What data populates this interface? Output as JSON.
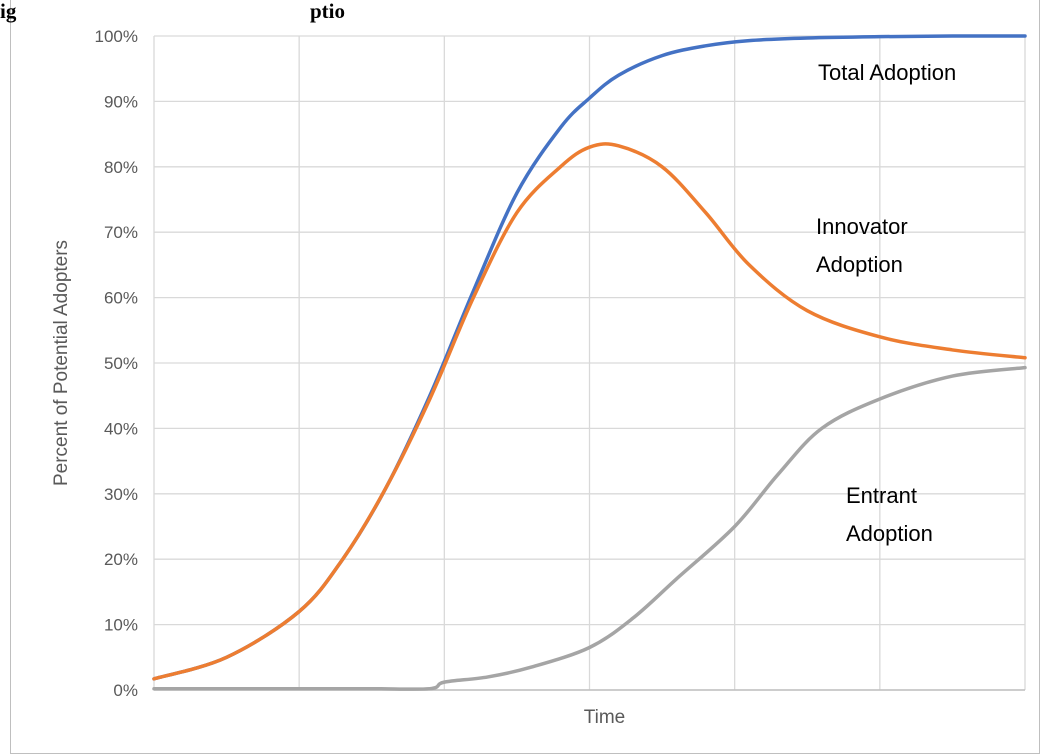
{
  "figure_heading": "ig",
  "heading_fragment": "ptio",
  "chart_data": {
    "type": "line",
    "title": "",
    "xlabel": "Time",
    "ylabel": "Percent of Potential Adopters",
    "ylim": [
      0,
      1
    ],
    "xlim": [
      0,
      6
    ],
    "y_ticks": [
      "0%",
      "10%",
      "20%",
      "30%",
      "40%",
      "50%",
      "60%",
      "70%",
      "80%",
      "90%",
      "100%"
    ],
    "y_tick_values": [
      0,
      0.1,
      0.2,
      0.3,
      0.4,
      0.5,
      0.6,
      0.7,
      0.8,
      0.9,
      1.0
    ],
    "x_gridlines": [
      0,
      1,
      2,
      3,
      4,
      5,
      6
    ],
    "grid": true,
    "legend": "none",
    "series": [
      {
        "name": "Total Adoption",
        "label_lines": [
          "Total Adoption"
        ],
        "color": "#4472C4",
        "x": [
          0,
          0.5,
          1.0,
          1.3,
          1.6,
          1.9,
          2.2,
          2.5,
          2.8,
          3.0,
          3.2,
          3.5,
          3.8,
          4.1,
          4.5,
          5.0,
          5.5,
          6.0
        ],
        "y": [
          0.017,
          0.05,
          0.12,
          0.2,
          0.31,
          0.45,
          0.61,
          0.76,
          0.86,
          0.905,
          0.94,
          0.97,
          0.985,
          0.993,
          0.997,
          0.999,
          1.0,
          1.0
        ]
      },
      {
        "name": "Innovator Adoption",
        "label_lines": [
          "Innovator",
          "Adoption"
        ],
        "color": "#ED7D31",
        "x": [
          0,
          0.5,
          1.0,
          1.3,
          1.6,
          1.9,
          2.2,
          2.5,
          2.8,
          3.0,
          3.2,
          3.5,
          3.8,
          4.1,
          4.5,
          5.0,
          5.5,
          6.0
        ],
        "y": [
          0.017,
          0.05,
          0.12,
          0.2,
          0.31,
          0.445,
          0.6,
          0.73,
          0.8,
          0.83,
          0.832,
          0.8,
          0.73,
          0.65,
          0.58,
          0.54,
          0.52,
          0.508
        ]
      },
      {
        "name": "Entrant Adoption",
        "label_lines": [
          "Entrant",
          "Adoption"
        ],
        "color": "#A5A5A5",
        "x": [
          0,
          0.5,
          1.0,
          1.5,
          1.9,
          2.0,
          2.3,
          2.6,
          3.0,
          3.3,
          3.6,
          4.0,
          4.3,
          4.6,
          5.0,
          5.5,
          6.0
        ],
        "y": [
          0.002,
          0.002,
          0.002,
          0.002,
          0.002,
          0.012,
          0.02,
          0.035,
          0.065,
          0.11,
          0.17,
          0.25,
          0.33,
          0.4,
          0.445,
          0.48,
          0.493
        ]
      }
    ]
  }
}
